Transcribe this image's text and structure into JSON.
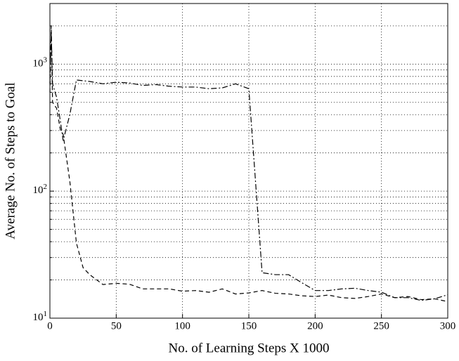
{
  "chart_data": {
    "type": "line",
    "xlabel": "No.  of Learning Steps  X 1000",
    "ylabel": "Average No. of  Steps to Goal",
    "xlim": [
      0,
      300
    ],
    "xticks": [
      0,
      50,
      100,
      150,
      200,
      250,
      300
    ],
    "ylim": [
      10,
      3000
    ],
    "log_y": true,
    "grid": true,
    "yticks": [
      {
        "value": 10,
        "label": "10^1"
      },
      {
        "value": 100,
        "label": "10^2"
      },
      {
        "value": 1000,
        "label": "10^3"
      }
    ],
    "yminorticks": [
      20,
      30,
      40,
      50,
      60,
      70,
      80,
      90,
      200,
      300,
      400,
      500,
      600,
      700,
      800,
      900,
      2000
    ],
    "series": [
      {
        "color": "#000000",
        "dash": "dashed",
        "x": [
          0,
          1,
          2,
          5,
          8,
          10,
          15,
          20,
          25,
          30,
          40,
          50,
          60,
          70,
          80,
          90,
          100,
          110,
          120,
          130,
          140,
          150,
          160,
          170,
          180,
          190,
          200,
          210,
          220,
          230,
          240,
          250,
          260,
          270,
          280,
          290,
          300
        ],
        "values": [
          600,
          2000,
          500,
          450,
          300,
          280,
          120,
          39,
          25,
          22,
          18.4,
          18.8,
          18.5,
          17,
          17,
          17,
          16.3,
          16.5,
          16,
          17,
          15.5,
          15.8,
          16.5,
          15.7,
          15.5,
          15,
          14.8,
          15.2,
          14.5,
          14.3,
          14.8,
          15.5,
          14.5,
          14.8,
          14,
          14.2,
          13.5
        ]
      },
      {
        "color": "#000000",
        "dash": "dashdot",
        "x": [
          0,
          1,
          2,
          5,
          8,
          10,
          15,
          20,
          30,
          40,
          50,
          60,
          70,
          80,
          90,
          100,
          110,
          120,
          130,
          140,
          150,
          160,
          170,
          180,
          190,
          200,
          210,
          220,
          230,
          240,
          250,
          260,
          270,
          280,
          290,
          300
        ],
        "values": [
          700,
          1800,
          700,
          550,
          350,
          250,
          400,
          750,
          730,
          700,
          720,
          710,
          680,
          690,
          670,
          660,
          660,
          640,
          650,
          700,
          640,
          22.8,
          22,
          22,
          19,
          16.5,
          16.5,
          17,
          17.2,
          16.5,
          16,
          14.5,
          14.5,
          13.8,
          14.2,
          15.3
        ]
      }
    ]
  }
}
